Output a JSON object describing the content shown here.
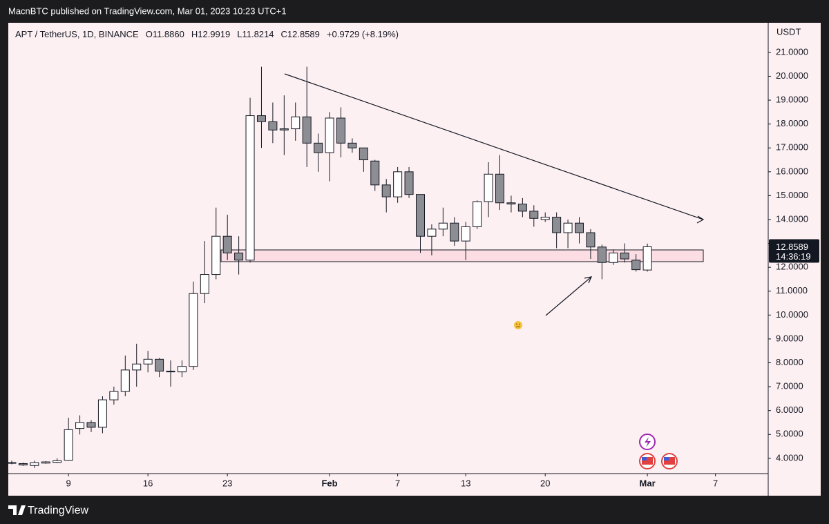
{
  "publisher": "MacnBTC published on TradingView.com, Mar 01, 2023 10:23 UTC+1",
  "footer": "TradingView",
  "chart_data": {
    "type": "candlestick",
    "title": "APT / TetherUS, 1D, BINANCE",
    "legend": [
      "O11.8860",
      "H12.9919",
      "L11.8214",
      "C12.8589",
      "+0.9729 (+8.19%)"
    ],
    "y_axis_label": "USDT",
    "last_price_label": "12.8589",
    "countdown": "14:36:19",
    "up_color": "#ffffff",
    "down_color": "#8d8e94",
    "x": [
      "2023-01-04",
      "2023-01-05",
      "2023-01-06",
      "2023-01-07",
      "2023-01-08",
      "2023-01-09",
      "2023-01-10",
      "2023-01-11",
      "2023-01-12",
      "2023-01-13",
      "2023-01-14",
      "2023-01-15",
      "2023-01-16",
      "2023-01-17",
      "2023-01-18",
      "2023-01-19",
      "2023-01-20",
      "2023-01-21",
      "2023-01-22",
      "2023-01-23",
      "2023-01-24",
      "2023-01-25",
      "2023-01-26",
      "2023-01-27",
      "2023-01-28",
      "2023-01-29",
      "2023-01-30",
      "2023-01-31",
      "2023-02-01",
      "2023-02-02",
      "2023-02-03",
      "2023-02-04",
      "2023-02-05",
      "2023-02-06",
      "2023-02-07",
      "2023-02-08",
      "2023-02-09",
      "2023-02-10",
      "2023-02-11",
      "2023-02-12",
      "2023-02-13",
      "2023-02-14",
      "2023-02-15",
      "2023-02-16",
      "2023-02-17",
      "2023-02-18",
      "2023-02-19",
      "2023-02-20",
      "2023-02-21",
      "2023-02-22",
      "2023-02-23",
      "2023-02-24",
      "2023-02-25",
      "2023-02-26",
      "2023-02-27",
      "2023-02-28",
      "2023-03-01"
    ],
    "open": [
      3.8,
      3.78,
      3.7,
      3.8,
      3.83,
      3.92,
      5.25,
      5.5,
      5.3,
      6.45,
      6.8,
      7.7,
      7.95,
      8.15,
      7.65,
      7.62,
      7.85,
      10.9,
      11.7,
      13.3,
      12.6,
      12.3,
      18.35,
      18.1,
      17.8,
      17.8,
      18.3,
      17.2,
      16.8,
      18.25,
      17.2,
      17.0,
      16.45,
      15.45,
      14.95,
      16.0,
      15.05,
      13.3,
      13.6,
      13.85,
      13.1,
      13.7,
      14.75,
      15.9,
      14.7,
      14.65,
      14.35,
      14.0,
      14.1,
      13.45,
      13.85,
      13.45,
      12.85,
      12.2,
      12.6,
      12.3,
      11.886
    ],
    "high": [
      3.9,
      3.82,
      3.9,
      3.88,
      4.0,
      5.7,
      5.8,
      5.6,
      6.6,
      7.0,
      8.3,
      8.8,
      8.5,
      8.2,
      8.1,
      8.1,
      11.4,
      13.1,
      14.5,
      14.2,
      13.3,
      19.1,
      20.4,
      18.9,
      19.2,
      18.9,
      20.4,
      17.6,
      18.5,
      18.7,
      17.4,
      17.0,
      16.5,
      15.7,
      16.2,
      16.2,
      15.05,
      13.8,
      14.5,
      14.1,
      13.9,
      14.8,
      16.4,
      16.7,
      15.0,
      14.9,
      14.6,
      14.3,
      14.3,
      14.0,
      14.1,
      13.6,
      12.95,
      12.75,
      13.0,
      12.55,
      12.9919
    ],
    "low": [
      3.75,
      3.68,
      3.6,
      3.77,
      3.8,
      3.9,
      5.0,
      5.1,
      5.05,
      6.25,
      6.6,
      7.0,
      7.6,
      7.4,
      7.0,
      7.4,
      7.7,
      10.5,
      11.5,
      12.3,
      11.7,
      12.2,
      17.0,
      17.2,
      16.7,
      17.3,
      16.2,
      16.0,
      15.6,
      16.6,
      16.8,
      16.0,
      15.2,
      14.3,
      14.7,
      14.9,
      12.6,
      12.5,
      13.3,
      12.9,
      12.3,
      13.6,
      14.1,
      14.4,
      14.3,
      14.1,
      13.7,
      13.9,
      12.8,
      12.8,
      13.0,
      12.35,
      11.5,
      12.1,
      12.2,
      11.82,
      11.8214
    ],
    "close": [
      3.82,
      3.72,
      3.82,
      3.85,
      3.9,
      5.2,
      5.5,
      5.3,
      6.45,
      6.8,
      7.7,
      7.95,
      8.15,
      7.65,
      7.62,
      7.85,
      10.9,
      11.7,
      13.3,
      12.6,
      12.3,
      18.35,
      18.1,
      17.75,
      17.75,
      18.3,
      17.2,
      16.8,
      18.25,
      17.2,
      17.0,
      16.5,
      15.45,
      14.95,
      16.0,
      15.05,
      13.3,
      13.6,
      13.85,
      13.1,
      13.7,
      14.75,
      15.9,
      14.7,
      14.65,
      14.35,
      14.05,
      14.1,
      13.45,
      13.85,
      13.45,
      12.85,
      12.2,
      12.6,
      12.35,
      11.9,
      12.8589
    ],
    "xlim": [
      "2023-01-03",
      "2023-03-11"
    ],
    "xticks": [
      {
        "value": "2023-01-09",
        "label": "9"
      },
      {
        "value": "2023-01-16",
        "label": "16"
      },
      {
        "value": "2023-01-23",
        "label": "23"
      },
      {
        "value": "2023-02-01",
        "label": "Feb"
      },
      {
        "value": "2023-02-07",
        "label": "7"
      },
      {
        "value": "2023-02-13",
        "label": "13"
      },
      {
        "value": "2023-02-20",
        "label": "20"
      },
      {
        "value": "2023-03-01",
        "label": "Mar"
      },
      {
        "value": "2023-03-07",
        "label": "7"
      }
    ],
    "ylim": [
      3.36,
      22.24
    ],
    "yticks": [
      {
        "value": 4,
        "label": "4.0000"
      },
      {
        "value": 5,
        "label": "5.0000"
      },
      {
        "value": 6,
        "label": "6.0000"
      },
      {
        "value": 7,
        "label": "7.0000"
      },
      {
        "value": 8,
        "label": "8.0000"
      },
      {
        "value": 9,
        "label": "9.0000"
      },
      {
        "value": 10,
        "label": "10.0000"
      },
      {
        "value": 11,
        "label": "11.0000"
      },
      {
        "value": 12,
        "label": "12.0000"
      },
      {
        "value": 13,
        "label": "13.0000"
      },
      {
        "value": 14,
        "label": "14.0000"
      },
      {
        "value": 15,
        "label": "15.0000"
      },
      {
        "value": 16,
        "label": "16.0000"
      },
      {
        "value": 17,
        "label": "17.0000"
      },
      {
        "value": 18,
        "label": "18.0000"
      },
      {
        "value": 19,
        "label": "19.0000"
      },
      {
        "value": 20,
        "label": "20.0000"
      },
      {
        "value": 21,
        "label": "21.0000"
      }
    ],
    "grid": false
  }
}
